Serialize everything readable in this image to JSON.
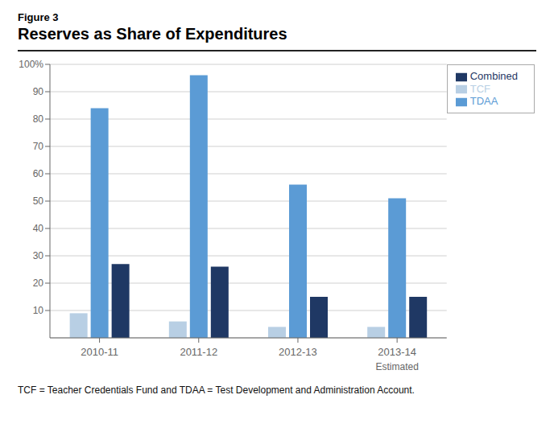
{
  "chart_data": {
    "type": "bar",
    "title": "Reserves as Share of Expenditures",
    "subtitle": "Figure 3",
    "categories": [
      "2010-11",
      "2011-12",
      "2012-13",
      "2013-14"
    ],
    "series": [
      {
        "name": "TCF",
        "color": "#b8cfe4",
        "values": [
          9,
          6,
          4,
          4
        ]
      },
      {
        "name": "TDAA",
        "color": "#5b9bd5",
        "values": [
          84,
          96,
          56,
          51
        ]
      },
      {
        "name": "Combined",
        "color": "#1f3864",
        "values": [
          27,
          26,
          15,
          15
        ]
      }
    ],
    "ylim": [
      0,
      100
    ],
    "yticks": [
      10,
      20,
      30,
      40,
      50,
      60,
      70,
      80,
      90,
      {
        "value": 100,
        "label": "100%"
      }
    ],
    "grid": true,
    "legend": "upper right",
    "annotations": [
      {
        "text": "Estimated",
        "category": "2013-14"
      },
      {
        "text": "TCF = Teacher Credentials Fund and TDAA = Test Development and Administration Account."
      }
    ]
  }
}
